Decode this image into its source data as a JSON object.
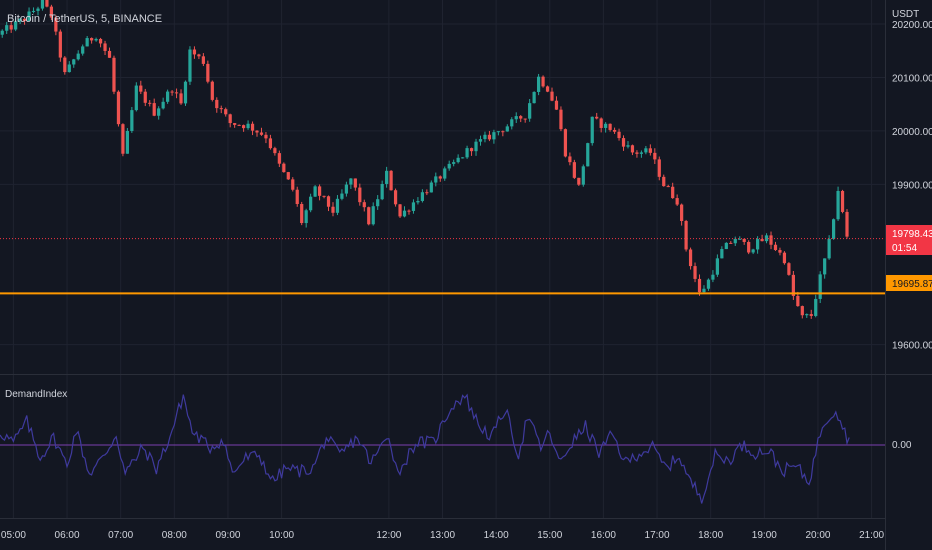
{
  "header": {
    "symbol_title": "Bitcoin / TetherUS, 5, BINANCE"
  },
  "price_axis": {
    "currency": "USDT",
    "ticks": [
      "20200.00",
      "20100.00",
      "20000.00",
      "19900.00",
      "19600.00"
    ]
  },
  "last_price": {
    "value": "19798.43",
    "countdown": "01:54"
  },
  "horizontal_line": {
    "value": "19695.87",
    "color": "#ff9800"
  },
  "indicator": {
    "name": "DemandIndex",
    "zero_label": "0.00"
  },
  "time_axis": {
    "ticks": [
      "05:00",
      "06:00",
      "07:00",
      "08:00",
      "09:00",
      "10:00",
      "12:00",
      "13:00",
      "14:00",
      "15:00",
      "16:00",
      "17:00",
      "18:00",
      "19:00",
      "20:00",
      "21:00"
    ]
  },
  "colors": {
    "background": "#131722",
    "up": "#26a69a",
    "down": "#ef5350",
    "indicator_line": "#3f3a9e",
    "zero_line": "#7b3fb0"
  },
  "chart_data": {
    "type": "candlestick",
    "title": "Bitcoin / TetherUS, 5, BINANCE",
    "ylim": [
      19545,
      20245
    ],
    "x_range": [
      "04:45",
      "21:15"
    ],
    "price_path": [
      [
        "04:45",
        20180
      ],
      [
        "05:15",
        20210
      ],
      [
        "05:35",
        20240
      ],
      [
        "05:45",
        20215
      ],
      [
        "06:00",
        20105
      ],
      [
        "06:20",
        20160
      ],
      [
        "06:35",
        20180
      ],
      [
        "06:50",
        20135
      ],
      [
        "07:00",
        20010
      ],
      [
        "07:05",
        19950
      ],
      [
        "07:20",
        20080
      ],
      [
        "07:40",
        20035
      ],
      [
        "08:00",
        20080
      ],
      [
        "08:10",
        20050
      ],
      [
        "08:20",
        20150
      ],
      [
        "08:35",
        20130
      ],
      [
        "08:45",
        20060
      ],
      [
        "09:05",
        20015
      ],
      [
        "09:25",
        20010
      ],
      [
        "09:45",
        19990
      ],
      [
        "10:00",
        19935
      ],
      [
        "10:15",
        19890
      ],
      [
        "10:25",
        19830
      ],
      [
        "10:40",
        19890
      ],
      [
        "11:00",
        19850
      ],
      [
        "11:20",
        19910
      ],
      [
        "11:40",
        19830
      ],
      [
        "12:00",
        19920
      ],
      [
        "12:15",
        19840
      ],
      [
        "12:35",
        19875
      ],
      [
        "13:00",
        19915
      ],
      [
        "13:35",
        19970
      ],
      [
        "14:05",
        20000
      ],
      [
        "14:35",
        20030
      ],
      [
        "14:50",
        20100
      ],
      [
        "15:00",
        20080
      ],
      [
        "15:10",
        20040
      ],
      [
        "15:20",
        19960
      ],
      [
        "15:35",
        19895
      ],
      [
        "15:50",
        20020
      ],
      [
        "16:10",
        20005
      ],
      [
        "16:35",
        19960
      ],
      [
        "16:55",
        19960
      ],
      [
        "17:10",
        19900
      ],
      [
        "17:25",
        19870
      ],
      [
        "17:35",
        19780
      ],
      [
        "17:50",
        19695
      ],
      [
        "18:00",
        19720
      ],
      [
        "18:15",
        19775
      ],
      [
        "18:30",
        19800
      ],
      [
        "18:45",
        19780
      ],
      [
        "19:05",
        19800
      ],
      [
        "19:25",
        19760
      ],
      [
        "19:35",
        19690
      ],
      [
        "19:45",
        19650
      ],
      [
        "19:55",
        19655
      ],
      [
        "20:05",
        19725
      ],
      [
        "20:15",
        19790
      ],
      [
        "20:25",
        19890
      ],
      [
        "20:35",
        19800
      ]
    ],
    "demand_index_path": [
      [
        "04:45",
        0.25
      ],
      [
        "05:00",
        0.05
      ],
      [
        "05:15",
        0.45
      ],
      [
        "05:30",
        -0.25
      ],
      [
        "05:45",
        0.15
      ],
      [
        "06:00",
        -0.4
      ],
      [
        "06:10",
        0.3
      ],
      [
        "06:25",
        -0.55
      ],
      [
        "06:40",
        -0.25
      ],
      [
        "06:55",
        0.2
      ],
      [
        "07:05",
        -0.55
      ],
      [
        "07:25",
        -0.05
      ],
      [
        "07:40",
        -0.45
      ],
      [
        "07:55",
        0.15
      ],
      [
        "08:10",
        0.95
      ],
      [
        "08:20",
        0.25
      ],
      [
        "08:40",
        -0.05
      ],
      [
        "08:55",
        0.1
      ],
      [
        "09:05",
        -0.55
      ],
      [
        "09:20",
        -0.25
      ],
      [
        "09:35",
        -0.2
      ],
      [
        "09:50",
        -0.7
      ],
      [
        "10:05",
        -0.45
      ],
      [
        "10:20",
        -0.5
      ],
      [
        "10:35",
        -0.45
      ],
      [
        "10:50",
        0.15
      ],
      [
        "11:05",
        -0.2
      ],
      [
        "11:25",
        0.15
      ],
      [
        "11:40",
        -0.35
      ],
      [
        "12:00",
        0.2
      ],
      [
        "12:10",
        -0.55
      ],
      [
        "12:30",
        0.05
      ],
      [
        "12:50",
        0.05
      ],
      [
        "13:10",
        0.75
      ],
      [
        "13:25",
        0.95
      ],
      [
        "13:40",
        0.4
      ],
      [
        "13:55",
        0.15
      ],
      [
        "14:10",
        0.7
      ],
      [
        "14:25",
        -0.2
      ],
      [
        "14:35",
        0.55
      ],
      [
        "14:50",
        -0.05
      ],
      [
        "15:00",
        0.25
      ],
      [
        "15:10",
        -0.35
      ],
      [
        "15:25",
        0.05
      ],
      [
        "15:40",
        0.35
      ],
      [
        "15:55",
        -0.15
      ],
      [
        "16:10",
        0.2
      ],
      [
        "16:25",
        -0.35
      ],
      [
        "16:40",
        -0.15
      ],
      [
        "16:55",
        -0.05
      ],
      [
        "17:10",
        -0.45
      ],
      [
        "17:25",
        -0.2
      ],
      [
        "17:35",
        -0.65
      ],
      [
        "17:50",
        -1.0
      ],
      [
        "18:05",
        -0.2
      ],
      [
        "18:20",
        -0.3
      ],
      [
        "18:35",
        0.0
      ],
      [
        "18:50",
        -0.15
      ],
      [
        "19:05",
        -0.1
      ],
      [
        "19:20",
        -0.5
      ],
      [
        "19:35",
        -0.4
      ],
      [
        "19:50",
        -0.7
      ],
      [
        "20:05",
        0.4
      ],
      [
        "20:20",
        0.7
      ],
      [
        "20:35",
        0.05
      ]
    ]
  }
}
